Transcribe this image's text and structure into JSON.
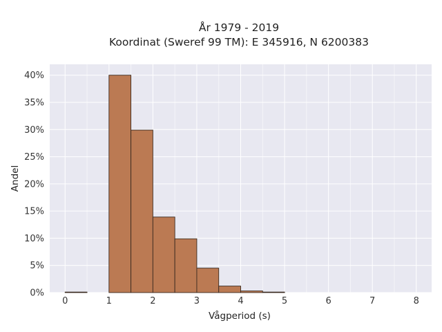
{
  "chart_data": {
    "type": "bar",
    "title_line1": "År 1979 - 2019",
    "title_line2": "Koordinat (Sweref 99 TM): E 345916, N 6200383",
    "xlabel": "Vågperiod (s)",
    "ylabel": "Andel",
    "x_ticks": [
      "0",
      "1",
      "2",
      "3",
      "4",
      "5",
      "6",
      "7",
      "8"
    ],
    "y_ticks": [
      "0%",
      "5%",
      "10%",
      "15%",
      "20%",
      "25%",
      "30%",
      "35%",
      "40%"
    ],
    "xlim": [
      -0.35,
      8.35
    ],
    "ylim": [
      0,
      0.42
    ],
    "bin_width": 0.5,
    "bins": [
      {
        "x0": 0.0,
        "x1": 0.5,
        "value": 0.001
      },
      {
        "x0": 1.0,
        "x1": 1.5,
        "value": 0.4
      },
      {
        "x0": 1.5,
        "x1": 2.0,
        "value": 0.299
      },
      {
        "x0": 2.0,
        "x1": 2.5,
        "value": 0.139
      },
      {
        "x0": 2.5,
        "x1": 3.0,
        "value": 0.099
      },
      {
        "x0": 3.0,
        "x1": 3.5,
        "value": 0.045
      },
      {
        "x0": 3.5,
        "x1": 4.0,
        "value": 0.012
      },
      {
        "x0": 4.0,
        "x1": 4.5,
        "value": 0.003
      },
      {
        "x0": 4.5,
        "x1": 5.0,
        "value": 0.001
      }
    ],
    "grid": true,
    "colors": {
      "bar": "#bb7a53",
      "bar_edge": "#3a2a20",
      "plot_bg": "#e8e8f1",
      "grid": "#ffffff"
    }
  }
}
